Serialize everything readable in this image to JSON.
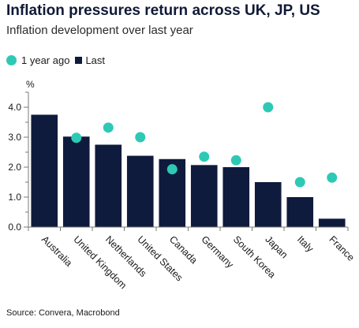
{
  "chart_data": {
    "type": "bar",
    "title": "Inflation pressures return across UK, JP, US",
    "subtitle": "Inflation development over last year",
    "ylabel": "%",
    "ylim": [
      0,
      4.5
    ],
    "yticks": [
      "0.0",
      "1.0",
      "2.0",
      "3.0",
      "4.0"
    ],
    "grid": false,
    "legend_position": "top-left",
    "categories": [
      "Australia",
      "United Kingdom",
      "Netherlands",
      "United States",
      "Canada",
      "Germany",
      "South Korea",
      "Japan",
      "Italy",
      "France"
    ],
    "series": [
      {
        "name": "Last",
        "kind": "bar",
        "color": "#0f1b3d",
        "values": [
          3.75,
          3.02,
          2.75,
          2.38,
          2.27,
          2.07,
          2.0,
          1.5,
          1.0,
          0.28
        ]
      },
      {
        "name": "1 year ago",
        "kind": "dot",
        "color": "#2ec9b4",
        "values": [
          null,
          2.98,
          3.32,
          3.0,
          1.93,
          2.35,
          2.23,
          4.0,
          1.5,
          1.65
        ]
      }
    ],
    "source": "Source: Convera, Macrobond"
  }
}
